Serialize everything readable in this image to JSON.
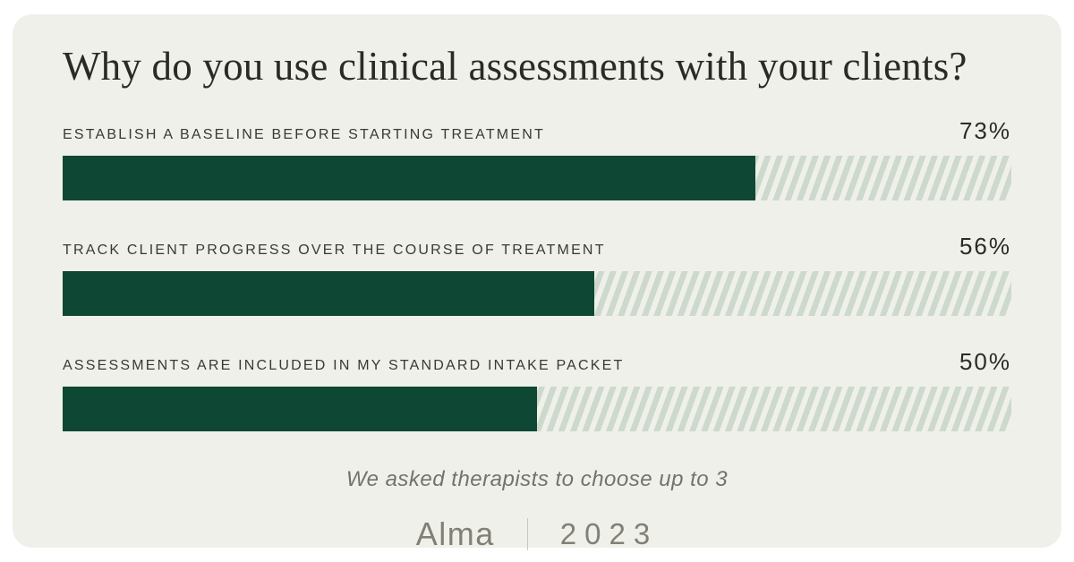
{
  "page": {
    "title": "Why do you use clinical assessments with your clients?",
    "footnote": "We asked therapists to choose up to 3",
    "brand": "Alma",
    "year": "2023"
  },
  "rows": [
    {
      "label": "ESTABLISH A BASELINE BEFORE STARTING TREATMENT",
      "value": 73,
      "percent_label": "73%"
    },
    {
      "label": "TRACK CLIENT PROGRESS OVER THE COURSE OF TREATMENT",
      "value": 56,
      "percent_label": "56%"
    },
    {
      "label": "ASSESSMENTS ARE INCLUDED IN MY STANDARD INTAKE PACKET",
      "value": 50,
      "percent_label": "50%"
    }
  ],
  "chart_data": {
    "type": "bar",
    "orientation": "horizontal",
    "title": "Why do you use clinical assessments with your clients?",
    "categories": [
      "ESTABLISH A BASELINE BEFORE STARTING TREATMENT",
      "TRACK CLIENT PROGRESS OVER THE COURSE OF TREATMENT",
      "ASSESSMENTS ARE INCLUDED IN MY STANDARD INTAKE PACKET"
    ],
    "values": [
      73,
      56,
      50
    ],
    "value_suffix": "%",
    "xlim": [
      0,
      100
    ],
    "grid": false,
    "legend": false,
    "annotation": "We asked therapists to choose up to 3",
    "source_label": "Alma 2023",
    "bar_style": "solid fill with diagonal-hatch remainder track"
  },
  "colors": {
    "page_bg": "#ffffff",
    "card_bg": "#eff0e9",
    "bar_fill": "#0e4733",
    "bar_hatch": "#ccd9cc",
    "title_text": "#2b2a26",
    "label_text": "#3a3933",
    "muted_text": "#75726a",
    "logo_text": "#827f77",
    "divider": "#c9c7c0"
  }
}
